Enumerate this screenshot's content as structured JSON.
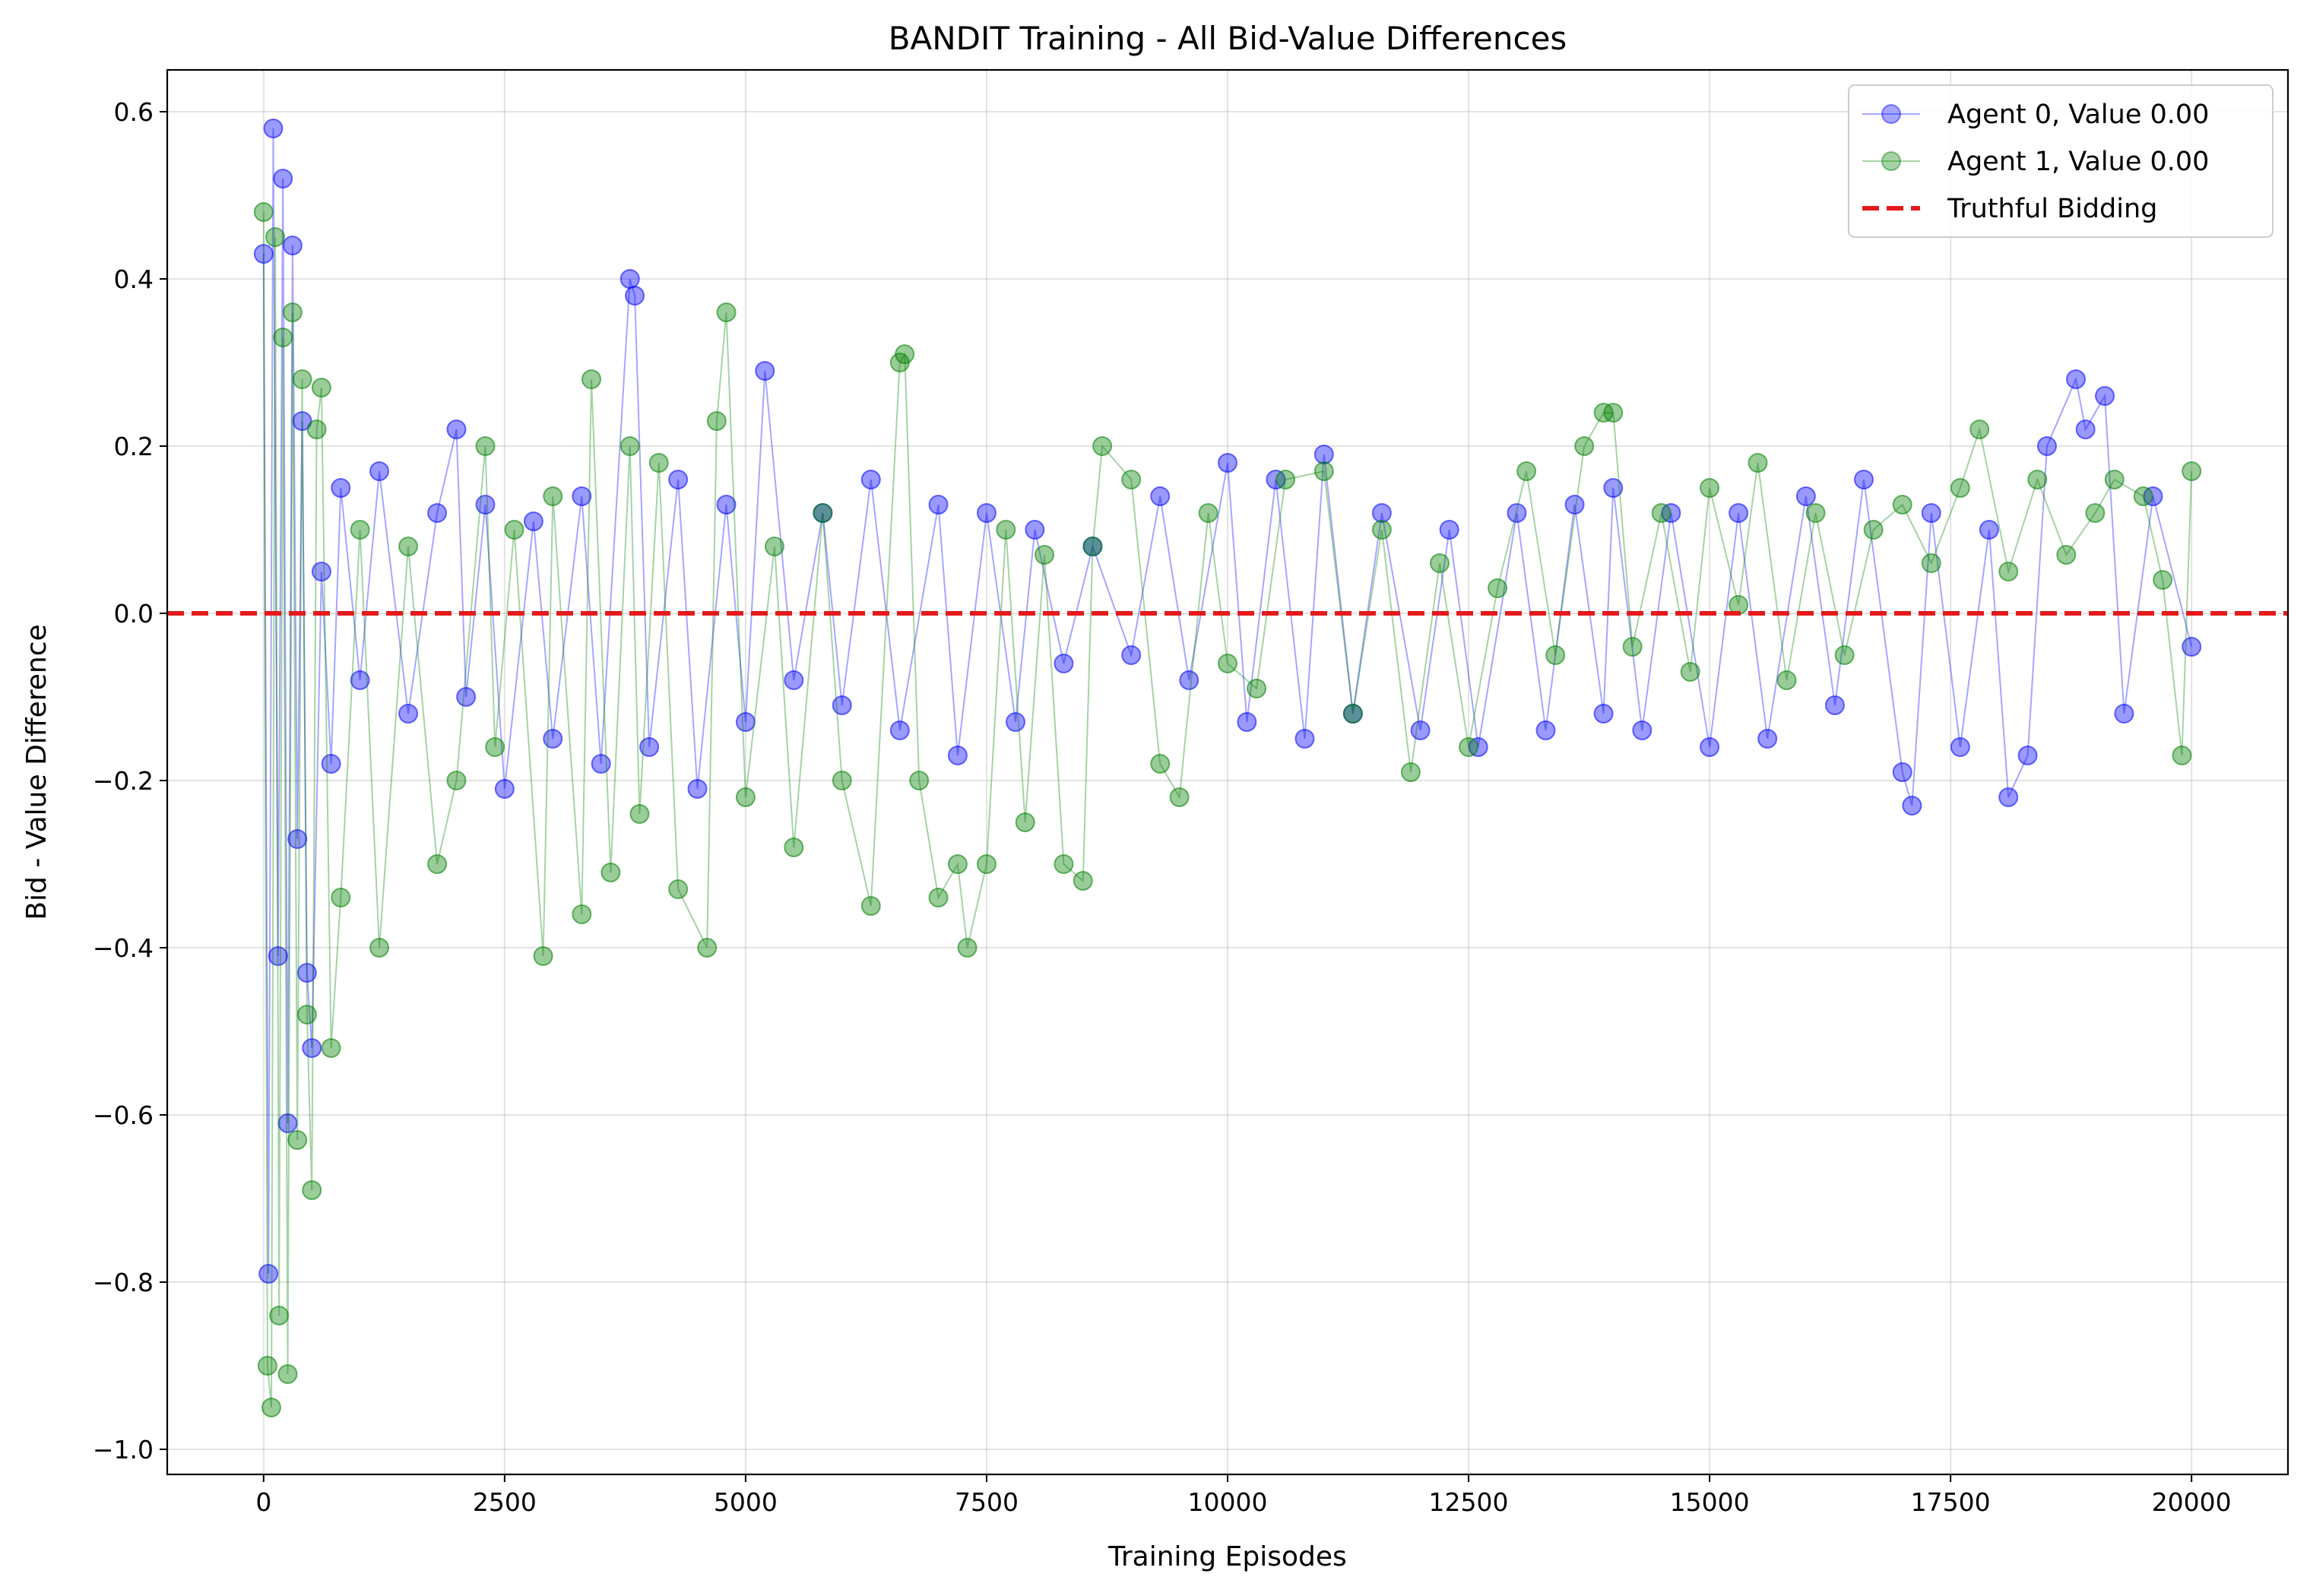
{
  "chart_data": {
    "type": "scatter",
    "title": "BANDIT Training - All Bid-Value Differences",
    "xlabel": "Training Episodes",
    "ylabel": "Bid - Value Difference",
    "xlim": [
      -1000,
      21000
    ],
    "ylim": [
      -1.03,
      0.65
    ],
    "x_ticks": [
      0,
      2500,
      5000,
      7500,
      10000,
      12500,
      15000,
      17500,
      20000
    ],
    "x_tick_labels": [
      "0",
      "2500",
      "5000",
      "7500",
      "10000",
      "12500",
      "15000",
      "17500",
      "20000"
    ],
    "y_ticks": [
      0.6,
      0.4,
      0.2,
      0.0,
      -0.2,
      -0.4,
      -0.6,
      -0.8,
      -1.0
    ],
    "y_tick_labels": [
      "0.6",
      "0.4",
      "0.2",
      "0.0",
      "−0.2",
      "−0.4",
      "−0.6",
      "−0.8",
      "−1.0"
    ],
    "grid": true,
    "legend_position": "top-right",
    "reference_line": {
      "name": "Truthful Bidding",
      "y": 0.0,
      "style": "dashed",
      "color": "#e41a1c"
    },
    "series": [
      {
        "name": "Agent 0, Value 0.00",
        "color": "#0000ff",
        "marker": "circle",
        "x": [
          0,
          50,
          100,
          150,
          200,
          250,
          300,
          350,
          400,
          450,
          500,
          600,
          700,
          800,
          1000,
          1200,
          1500,
          1800,
          2000,
          2100,
          2300,
          2500,
          2800,
          3000,
          3300,
          3500,
          3800,
          3850,
          4000,
          4300,
          4500,
          4800,
          5000,
          5200,
          5500,
          5800,
          6000,
          6300,
          6600,
          7000,
          7200,
          7500,
          7800,
          8000,
          8300,
          8600,
          9000,
          9300,
          9600,
          10000,
          10200,
          10500,
          10800,
          11000,
          11300,
          11600,
          12000,
          12300,
          12600,
          13000,
          13300,
          13600,
          13900,
          14000,
          14300,
          14600,
          15000,
          15300,
          15600,
          16000,
          16300,
          16600,
          17000,
          17100,
          17300,
          17600,
          17900,
          18100,
          18300,
          18500,
          18800,
          18900,
          19100,
          19300,
          19600,
          20000
        ],
        "y": [
          0.43,
          -0.79,
          0.58,
          -0.41,
          0.52,
          -0.61,
          0.44,
          -0.27,
          0.23,
          -0.43,
          -0.52,
          0.05,
          -0.18,
          0.15,
          -0.08,
          0.17,
          -0.12,
          0.12,
          0.22,
          -0.1,
          0.13,
          -0.21,
          0.11,
          -0.15,
          0.14,
          -0.18,
          0.4,
          0.38,
          -0.16,
          0.16,
          -0.21,
          0.13,
          -0.13,
          0.29,
          -0.08,
          0.12,
          -0.11,
          0.16,
          -0.14,
          0.13,
          -0.17,
          0.12,
          -0.13,
          0.1,
          -0.06,
          0.08,
          -0.05,
          0.14,
          -0.08,
          0.18,
          -0.13,
          0.16,
          -0.15,
          0.19,
          -0.12,
          0.12,
          -0.14,
          0.1,
          -0.16,
          0.12,
          -0.14,
          0.13,
          -0.12,
          0.15,
          -0.14,
          0.12,
          -0.16,
          0.12,
          -0.15,
          0.14,
          -0.11,
          0.16,
          -0.19,
          -0.23,
          0.12,
          -0.16,
          0.1,
          -0.22,
          -0.17,
          0.2,
          0.28,
          0.22,
          0.26,
          -0.12,
          0.14,
          -0.04
        ]
      },
      {
        "name": "Agent 1, Value 0.00",
        "color": "#008000",
        "marker": "circle",
        "x": [
          0,
          40,
          80,
          120,
          160,
          200,
          250,
          300,
          350,
          400,
          450,
          500,
          550,
          600,
          700,
          800,
          1000,
          1200,
          1500,
          1800,
          2000,
          2300,
          2400,
          2600,
          2900,
          3000,
          3300,
          3400,
          3600,
          3800,
          3900,
          4100,
          4300,
          4600,
          4700,
          4800,
          5000,
          5300,
          5500,
          5800,
          6000,
          6300,
          6600,
          6650,
          6800,
          7000,
          7200,
          7300,
          7500,
          7700,
          7900,
          8100,
          8300,
          8500,
          8600,
          8700,
          9000,
          9300,
          9500,
          9800,
          10000,
          10300,
          10600,
          11000,
          11300,
          11600,
          11900,
          12200,
          12500,
          12800,
          13100,
          13400,
          13700,
          13900,
          14000,
          14200,
          14500,
          14800,
          15000,
          15300,
          15500,
          15800,
          16100,
          16400,
          16700,
          17000,
          17300,
          17600,
          17800,
          18100,
          18400,
          18700,
          19000,
          19200,
          19500,
          19700,
          19900,
          20000
        ],
        "y": [
          0.48,
          -0.9,
          -0.95,
          0.45,
          -0.84,
          0.33,
          -0.91,
          0.36,
          -0.63,
          0.28,
          -0.48,
          -0.69,
          0.22,
          0.27,
          -0.52,
          -0.34,
          0.1,
          -0.4,
          0.08,
          -0.3,
          -0.2,
          0.2,
          -0.16,
          0.1,
          -0.41,
          0.14,
          -0.36,
          0.28,
          -0.31,
          0.2,
          -0.24,
          0.18,
          -0.33,
          -0.4,
          0.23,
          0.36,
          -0.22,
          0.08,
          -0.28,
          0.12,
          -0.2,
          -0.35,
          0.3,
          0.31,
          -0.2,
          -0.34,
          -0.3,
          -0.4,
          -0.3,
          0.1,
          -0.25,
          0.07,
          -0.3,
          -0.32,
          0.08,
          0.2,
          0.16,
          -0.18,
          -0.22,
          0.12,
          -0.06,
          -0.09,
          0.16,
          0.17,
          -0.12,
          0.1,
          -0.19,
          0.06,
          -0.16,
          0.03,
          0.17,
          -0.05,
          0.2,
          0.24,
          0.24,
          -0.04,
          0.12,
          -0.07,
          0.15,
          0.01,
          0.18,
          -0.08,
          0.12,
          -0.05,
          0.1,
          0.13,
          0.06,
          0.15,
          0.22,
          0.05,
          0.16,
          0.07,
          0.12,
          0.16,
          0.14,
          0.04,
          -0.17,
          0.17
        ]
      }
    ]
  }
}
